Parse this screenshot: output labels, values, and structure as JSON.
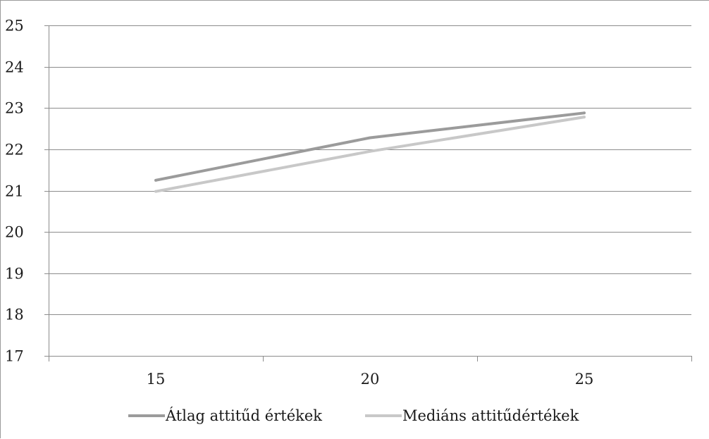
{
  "chart_data": {
    "type": "line",
    "title": "",
    "xlabel": "",
    "ylabel": "",
    "categories": [
      "15",
      "20",
      "25"
    ],
    "ylim": [
      17,
      25
    ],
    "yticks": [
      17,
      18,
      19,
      20,
      21,
      22,
      23,
      24,
      25
    ],
    "grid": true,
    "legend_position": "bottom",
    "series": [
      {
        "name": "Átlag attitűd értékek",
        "values": [
          21.25,
          22.28,
          22.88
        ],
        "color": "#9b9b9b"
      },
      {
        "name": "Mediáns attitűdértékek",
        "values": [
          20.98,
          21.95,
          22.78
        ],
        "color": "#c8c8c8"
      }
    ]
  }
}
